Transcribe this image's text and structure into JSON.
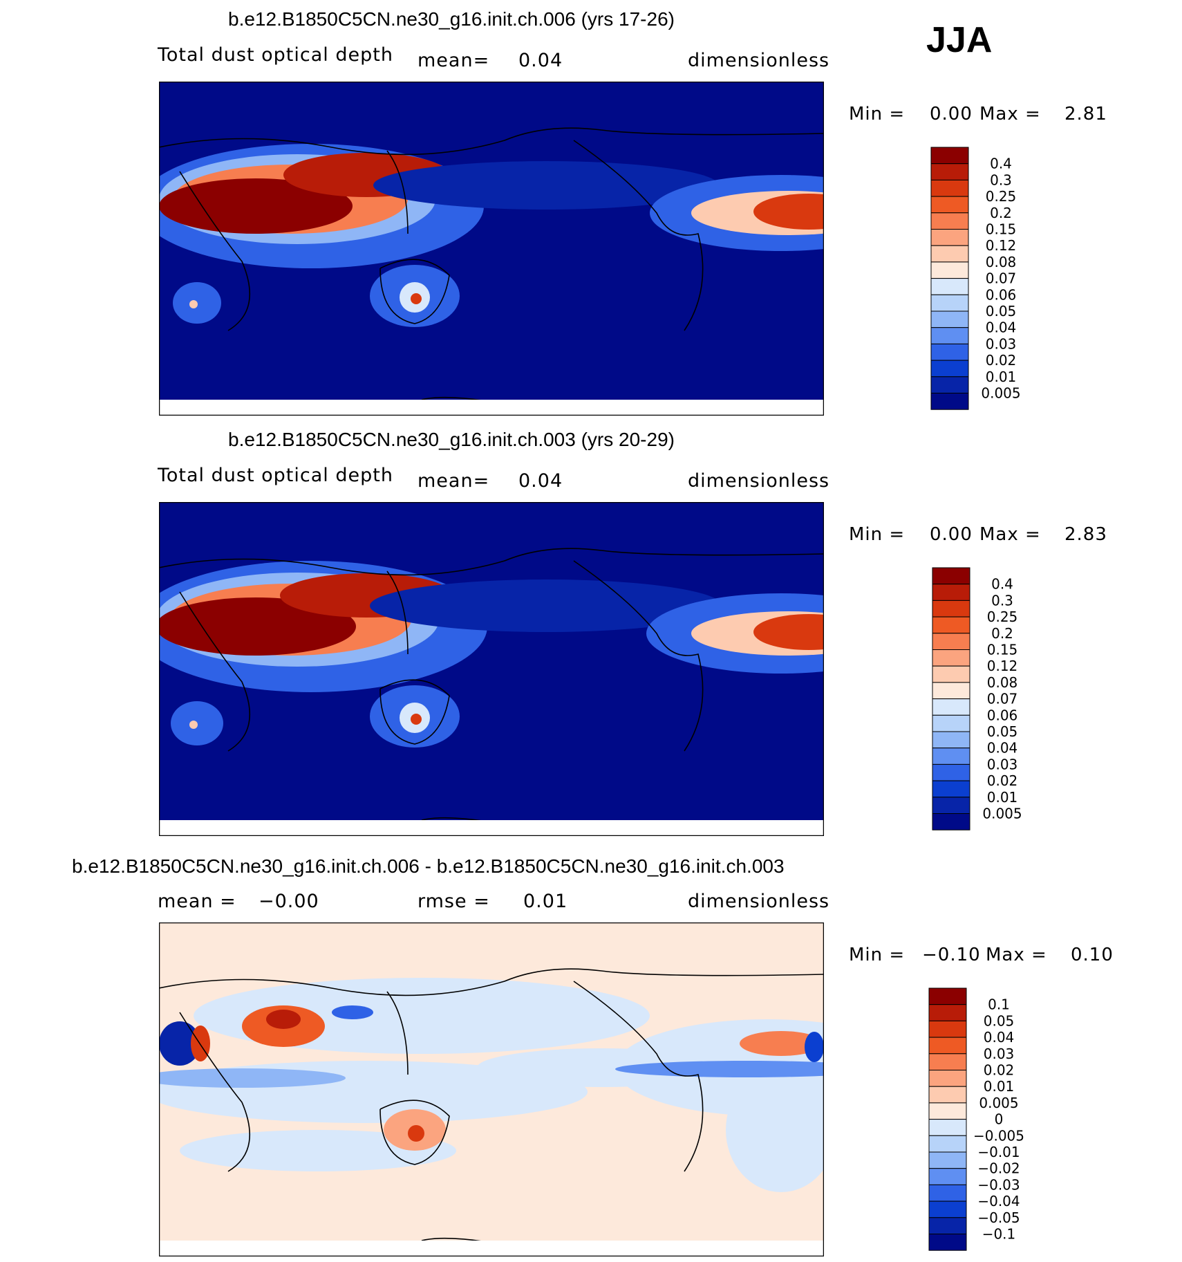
{
  "season_label": "JJA",
  "chart_data": [
    {
      "type": "heatmap",
      "title": "b.e12.B1850C5CN.ne30_g16.init.ch.006 (yrs 17-26)",
      "variable": "Total dust optical depth",
      "stat_label": "mean=",
      "stat_value": "0.04",
      "units": "dimensionless",
      "min_label": "Min =",
      "min_value": "0.00",
      "max_label": "Max =",
      "max_value": "2.81",
      "levels": [
        "0.4",
        "0.3",
        "0.25",
        "0.2",
        "0.15",
        "0.12",
        "0.08",
        "0.07",
        "0.06",
        "0.05",
        "0.04",
        "0.03",
        "0.02",
        "0.01",
        "0.005"
      ],
      "colors": [
        "#8b0000",
        "#b81c08",
        "#d9390f",
        "#ee5a24",
        "#f77e50",
        "#fba47f",
        "#fdcbb0",
        "#fde9db",
        "#d8e8fb",
        "#b7d3f9",
        "#8fb6f6",
        "#5f8ff2",
        "#2f62e6",
        "#0b3fd0",
        "#0724a8",
        "#000a88"
      ],
      "background_color": "#000a88"
    },
    {
      "type": "heatmap",
      "title": "b.e12.B1850C5CN.ne30_g16.init.ch.003 (yrs 20-29)",
      "variable": "Total dust optical depth",
      "stat_label": "mean=",
      "stat_value": "0.04",
      "units": "dimensionless",
      "min_label": "Min =",
      "min_value": "0.00",
      "max_label": "Max =",
      "max_value": "2.83",
      "levels": [
        "0.4",
        "0.3",
        "0.25",
        "0.2",
        "0.15",
        "0.12",
        "0.08",
        "0.07",
        "0.06",
        "0.05",
        "0.04",
        "0.03",
        "0.02",
        "0.01",
        "0.005"
      ],
      "colors": [
        "#8b0000",
        "#b81c08",
        "#d9390f",
        "#ee5a24",
        "#f77e50",
        "#fba47f",
        "#fdcbb0",
        "#fde9db",
        "#d8e8fb",
        "#b7d3f9",
        "#8fb6f6",
        "#5f8ff2",
        "#2f62e6",
        "#0b3fd0",
        "#0724a8",
        "#000a88"
      ],
      "background_color": "#000a88"
    },
    {
      "type": "heatmap",
      "title": "b.e12.B1850C5CN.ne30_g16.init.ch.006 - b.e12.B1850C5CN.ne30_g16.init.ch.003",
      "stat_label": "mean =",
      "stat_value": "−0.00",
      "stat2_label": "rmse =",
      "stat2_value": "0.01",
      "units": "dimensionless",
      "min_label": "Min =",
      "min_value": "−0.10",
      "max_label": "Max =",
      "max_value": "0.10",
      "levels": [
        "0.1",
        "0.05",
        "0.04",
        "0.03",
        "0.02",
        "0.01",
        "0.005",
        "0",
        "−0.005",
        "−0.01",
        "−0.02",
        "−0.03",
        "−0.04",
        "−0.05",
        "−0.1"
      ],
      "colors": [
        "#8b0000",
        "#b81c08",
        "#d9390f",
        "#ee5a24",
        "#f77e50",
        "#fba47f",
        "#fdcbb0",
        "#fde9db",
        "#d8e8fb",
        "#b7d3f9",
        "#8fb6f6",
        "#5f8ff2",
        "#2f62e6",
        "#0b3fd0",
        "#0724a8",
        "#000a88"
      ],
      "background_color": "#fde9db"
    }
  ]
}
